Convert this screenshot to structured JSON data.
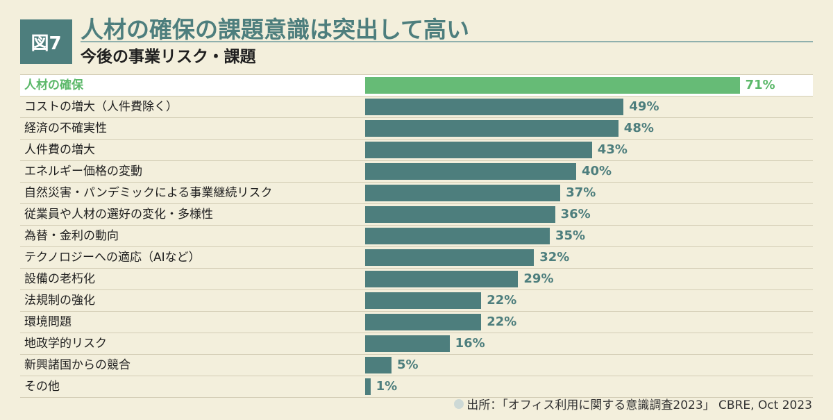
{
  "figure_label": "図7",
  "title": "人材の確保の課題意識は突出して高い",
  "subtitle": "今後の事業リスク・課題",
  "source": "出所：「オフィス利用に関する意識調査2023」 CBRE, Oct 2023",
  "colors": {
    "bar": "#4d7e7d",
    "highlight": "#66bb76",
    "background": "#f3efdc"
  },
  "chart_data": {
    "type": "bar",
    "orientation": "horizontal",
    "title": "人材の確保の課題意識は突出して高い",
    "subtitle": "今後の事業リスク・課題",
    "unit": "%",
    "xlim": [
      0,
      100
    ],
    "grid": false,
    "highlight_index": 0,
    "categories": [
      "人材の確保",
      "コストの増大（人件費除く）",
      "経済の不確実性",
      "人件費の増大",
      "エネルギー価格の変動",
      "自然災害・パンデミックによる事業継続リスク",
      "従業員や人材の選好の変化・多様性",
      "為替・金利の動向",
      "テクノロジーへの適応（AIなど）",
      "設備の老朽化",
      "法規制の強化",
      "環境問題",
      "地政学的リスク",
      "新興諸国からの競合",
      "その他"
    ],
    "values": [
      71,
      49,
      48,
      43,
      40,
      37,
      36,
      35,
      32,
      29,
      22,
      22,
      16,
      5,
      1
    ],
    "value_labels": [
      "71%",
      "49%",
      "48%",
      "43%",
      "40%",
      "37%",
      "36%",
      "35%",
      "32%",
      "29%",
      "22%",
      "22%",
      "16%",
      "5%",
      "1%"
    ]
  }
}
